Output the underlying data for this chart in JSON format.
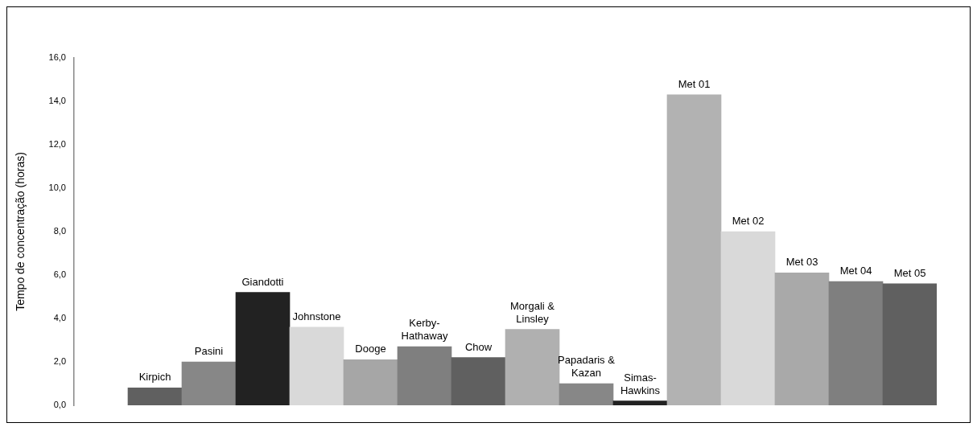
{
  "chart_data": {
    "type": "bar",
    "ylabel": "Tempo de concentração (horas)",
    "categories": [
      "Kirpich",
      "Pasini",
      "Giandotti",
      "Johnstone",
      "Dooge",
      "Kerby-Hathaway",
      "Chow",
      "Morgali & Linsley",
      "Papadaris & Kazan",
      "Simas-Hawkins",
      "Met 01",
      "Met 02",
      "Met 03",
      "Met 04",
      "Met 05"
    ],
    "values": [
      0.8,
      2.0,
      5.2,
      3.6,
      2.1,
      2.7,
      2.2,
      3.5,
      1.0,
      0.2,
      14.3,
      8.0,
      6.1,
      5.7,
      5.6
    ],
    "colors": [
      "#606060",
      "#878787",
      "#222222",
      "#d9d9d9",
      "#a6a6a6",
      "#7f7f7f",
      "#606060",
      "#b0b0b0",
      "#878787",
      "#222222",
      "#b2b2b2",
      "#d9d9d9",
      "#a9a9a9",
      "#7f7f7f",
      "#606060"
    ],
    "ylim": [
      0,
      16
    ],
    "yticks": [
      {
        "value": 0,
        "label": "0,0"
      },
      {
        "value": 2,
        "label": "2,0"
      },
      {
        "value": 4,
        "label": "4,0"
      },
      {
        "value": 6,
        "label": "6,0"
      },
      {
        "value": 8,
        "label": "8,0"
      },
      {
        "value": 10,
        "label": "10,0"
      },
      {
        "value": 12,
        "label": "12,0"
      },
      {
        "value": 14,
        "label": "14,0"
      },
      {
        "value": 16,
        "label": "16,0"
      }
    ],
    "grid": false,
    "legend": false
  }
}
